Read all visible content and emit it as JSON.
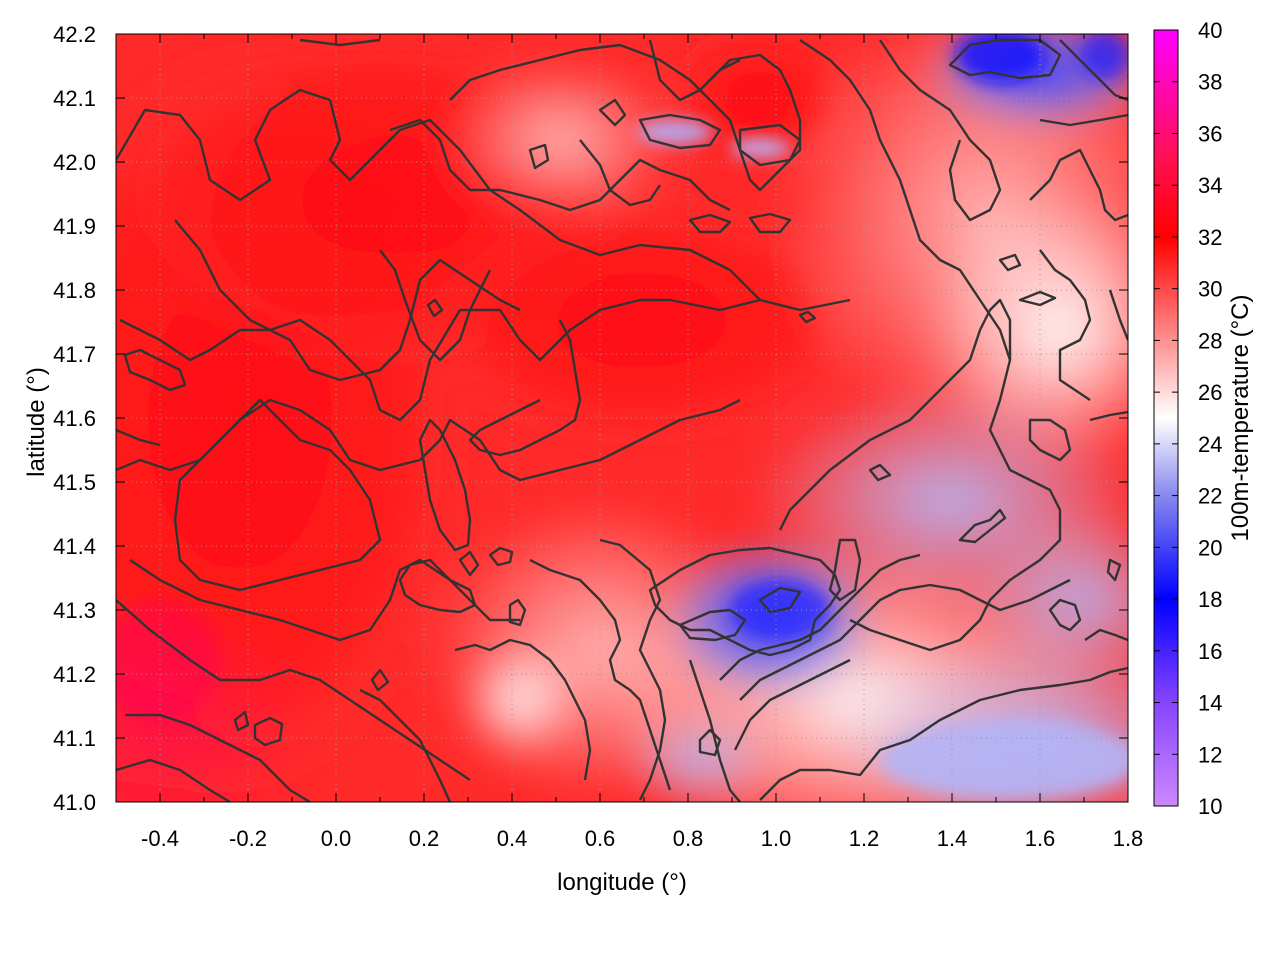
{
  "chart_data": {
    "type": "heatmap",
    "title": "",
    "xlabel": "longitude (°)",
    "ylabel": "latitude (°)",
    "colorbar_label": "100m-temperature (°C)",
    "xlim": [
      -0.5,
      1.8
    ],
    "ylim": [
      41.0,
      42.2
    ],
    "color_range": [
      10,
      40
    ],
    "x_ticks": [
      "-0.4",
      "-0.2",
      "0.0",
      "0.2",
      "0.4",
      "0.6",
      "0.8",
      "1.0",
      "1.2",
      "1.4",
      "1.6",
      "1.8"
    ],
    "x_tick_values": [
      -0.4,
      -0.2,
      0.0,
      0.2,
      0.4,
      0.6,
      0.8,
      1.0,
      1.2,
      1.4,
      1.6,
      1.8
    ],
    "y_ticks": [
      "41.0",
      "41.1",
      "41.2",
      "41.3",
      "41.4",
      "41.5",
      "41.6",
      "41.7",
      "41.8",
      "41.9",
      "42.0",
      "42.1",
      "42.2"
    ],
    "y_tick_values": [
      41.0,
      41.1,
      41.2,
      41.3,
      41.4,
      41.5,
      41.6,
      41.7,
      41.8,
      41.9,
      42.0,
      42.1,
      42.2
    ],
    "colorbar_ticks": [
      "10",
      "12",
      "14",
      "16",
      "18",
      "20",
      "22",
      "24",
      "26",
      "28",
      "30",
      "32",
      "34",
      "36",
      "38",
      "40"
    ],
    "colorbar_tick_values": [
      10,
      12,
      14,
      16,
      18,
      20,
      22,
      24,
      26,
      28,
      30,
      32,
      34,
      36,
      38,
      40
    ],
    "colormap": [
      {
        "value": 10,
        "color": "#cc88ff"
      },
      {
        "value": 14,
        "color": "#8844ff"
      },
      {
        "value": 18,
        "color": "#0000ff"
      },
      {
        "value": 22,
        "color": "#8888ee"
      },
      {
        "value": 25,
        "color": "#ffffff"
      },
      {
        "value": 28,
        "color": "#ff9090"
      },
      {
        "value": 32,
        "color": "#ff0000"
      },
      {
        "value": 35,
        "color": "#ff1050"
      },
      {
        "value": 40,
        "color": "#ff00ff"
      }
    ],
    "grid": true,
    "contours": true,
    "regions": [
      {
        "lon": -0.1,
        "lat": 41.45,
        "temp": 33
      },
      {
        "lon": 0.2,
        "lat": 41.85,
        "temp": 33
      },
      {
        "lon": -0.3,
        "lat": 41.8,
        "temp": 32
      },
      {
        "lon": 0.6,
        "lat": 41.75,
        "temp": 32
      },
      {
        "lon": 0.45,
        "lat": 42.1,
        "temp": 28
      },
      {
        "lon": 0.9,
        "lat": 42.1,
        "temp": 31
      },
      {
        "lon": 1.0,
        "lat": 41.3,
        "temp": 20
      },
      {
        "lon": 1.3,
        "lat": 41.5,
        "temp": 23
      },
      {
        "lon": 1.5,
        "lat": 41.15,
        "temp": 23
      },
      {
        "lon": 1.55,
        "lat": 42.15,
        "temp": 19
      },
      {
        "lon": 1.5,
        "lat": 41.75,
        "temp": 26
      },
      {
        "lon": 0.45,
        "lat": 41.2,
        "temp": 28
      },
      {
        "lon": -0.4,
        "lat": 41.15,
        "temp": 34
      }
    ]
  }
}
